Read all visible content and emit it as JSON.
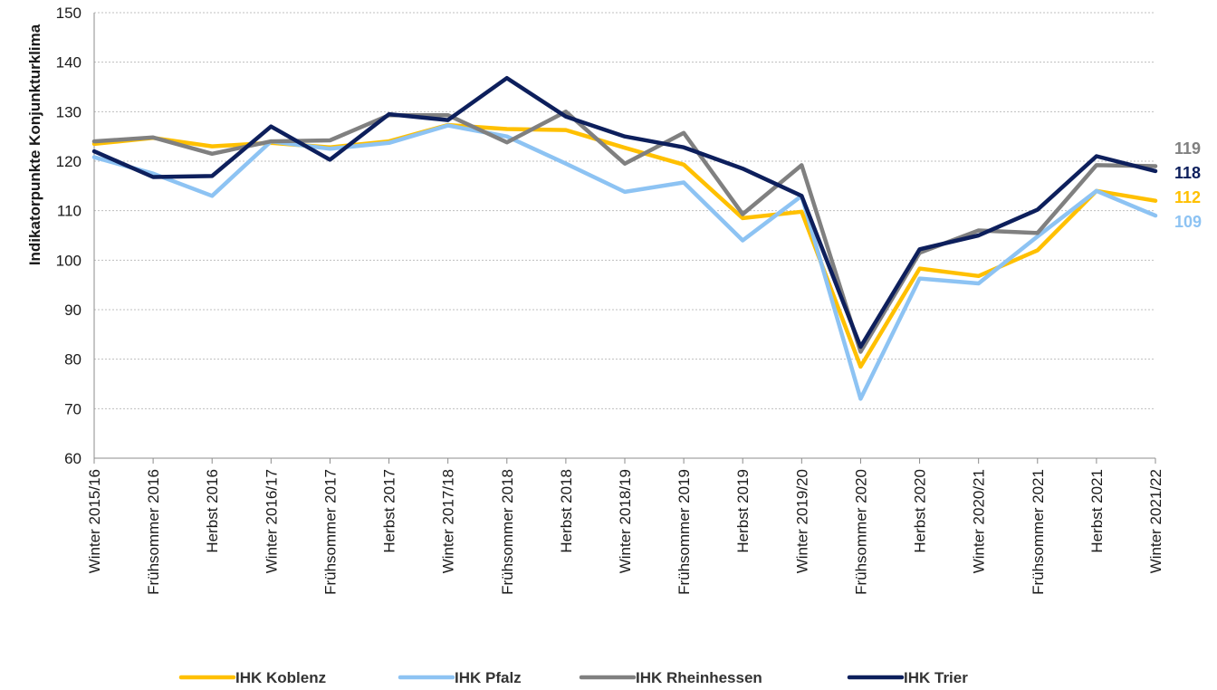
{
  "chart_data": {
    "type": "line",
    "title": "",
    "xlabel": "",
    "ylabel": "Indikatorpunkte Konjunkturklima",
    "ylim": [
      60,
      150
    ],
    "yticks": [
      60,
      70,
      80,
      90,
      100,
      110,
      120,
      130,
      140,
      150
    ],
    "grid": "horizontal-dotted",
    "legend": "bottom",
    "categories": [
      "Winter 2015/16",
      "Frühsommer 2016",
      "Herbst 2016",
      "Winter 2016/17",
      "Frühsommer 2017",
      "Herbst 2017",
      "Winter 2017/18",
      "Frühsommer 2018",
      "Herbst 2018",
      "Winter 2018/19",
      "Frühsommer 2019",
      "Herbst 2019",
      "Winter 2019/20",
      "Frühsommer 2020",
      "Herbst 2020",
      "Winter 2020/21",
      "Frühsommer 2021",
      "Herbst 2021",
      "Winter 2021/22"
    ],
    "series": [
      {
        "name": "IHK Koblenz",
        "color": "#FFC000",
        "values": [
          123.5,
          124.7,
          123.0,
          123.7,
          122.8,
          124.0,
          127.3,
          126.5,
          126.3,
          122.7,
          119.3,
          108.5,
          109.8,
          78.5,
          98.3,
          96.8,
          102.0,
          114.0,
          112.0
        ],
        "end_label": "112"
      },
      {
        "name": "IHK Pfalz",
        "color": "#8DC3F3",
        "values": [
          120.8,
          117.5,
          113.0,
          124.0,
          122.5,
          123.7,
          127.2,
          125.0,
          119.5,
          113.8,
          115.7,
          104.0,
          113.0,
          72.0,
          96.3,
          95.3,
          104.8,
          114.0,
          109.0
        ],
        "end_label": "109"
      },
      {
        "name": "IHK Rheinhessen",
        "color": "#808080",
        "values": [
          124.0,
          124.8,
          121.5,
          124.0,
          124.2,
          129.3,
          129.3,
          123.8,
          130.0,
          119.5,
          125.7,
          109.3,
          119.2,
          81.5,
          101.5,
          106.0,
          105.5,
          119.2,
          119.0
        ],
        "end_label": "119"
      },
      {
        "name": "IHK Trier",
        "color": "#0D1F5C",
        "values": [
          122.0,
          116.8,
          117.0,
          127.0,
          120.3,
          129.5,
          128.3,
          136.8,
          129.0,
          125.0,
          122.8,
          118.5,
          113.0,
          82.5,
          102.2,
          105.0,
          110.2,
          121.0,
          118.0
        ],
        "end_label": "118"
      }
    ],
    "end_label_order": [
      "IHK Rheinhessen",
      "IHK Trier",
      "IHK Koblenz",
      "IHK Pfalz"
    ]
  }
}
